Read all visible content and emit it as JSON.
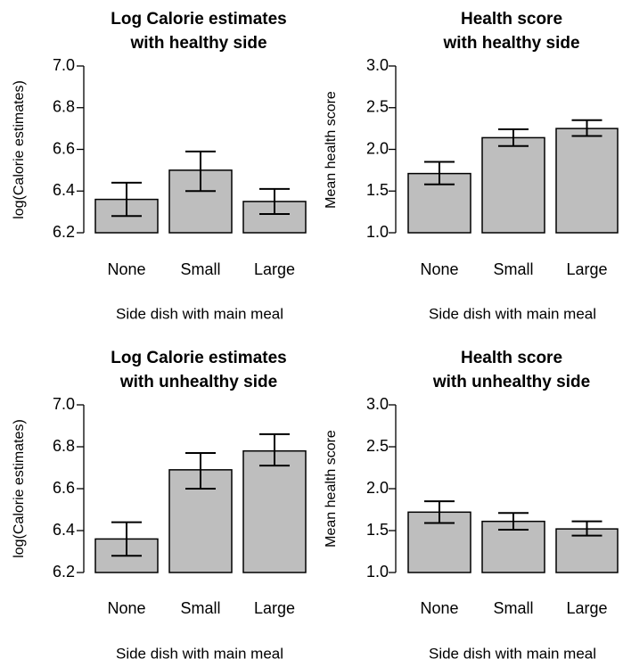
{
  "chart_data": [
    {
      "type": "bar",
      "title": [
        "Log Calorie estimates",
        "with healthy side"
      ],
      "categories": [
        "None",
        "Small",
        "Large"
      ],
      "values": [
        6.36,
        6.5,
        6.35
      ],
      "error_low": [
        6.28,
        6.4,
        6.29
      ],
      "error_high": [
        6.44,
        6.59,
        6.41
      ],
      "ylabel": "log(Calorie estimates)",
      "xlabel": "Side dish with main meal",
      "ylim": [
        6.2,
        7.0
      ],
      "yticks": [
        6.2,
        6.4,
        6.6,
        6.8,
        7.0
      ],
      "ytick_labels": [
        "6.2",
        "6.4",
        "6.6",
        "6.8",
        "7.0"
      ]
    },
    {
      "type": "bar",
      "title": [
        "Health score",
        "with healthy side"
      ],
      "categories": [
        "None",
        "Small",
        "Large"
      ],
      "values": [
        1.71,
        2.14,
        2.25
      ],
      "error_low": [
        1.58,
        2.04,
        2.16
      ],
      "error_high": [
        1.85,
        2.24,
        2.35
      ],
      "ylabel": "Mean health score",
      "xlabel": "Side dish with main meal",
      "ylim": [
        1.0,
        3.0
      ],
      "yticks": [
        1.0,
        1.5,
        2.0,
        2.5,
        3.0
      ],
      "ytick_labels": [
        "1.0",
        "1.5",
        "2.0",
        "2.5",
        "3.0"
      ]
    },
    {
      "type": "bar",
      "title": [
        "Log Calorie estimates",
        "with unhealthy side"
      ],
      "categories": [
        "None",
        "Small",
        "Large"
      ],
      "values": [
        6.36,
        6.69,
        6.78
      ],
      "error_low": [
        6.28,
        6.6,
        6.71
      ],
      "error_high": [
        6.44,
        6.77,
        6.86
      ],
      "ylabel": "log(Calorie estimates)",
      "xlabel": "Side dish with main meal",
      "ylim": [
        6.2,
        7.0
      ],
      "yticks": [
        6.2,
        6.4,
        6.6,
        6.8,
        7.0
      ],
      "ytick_labels": [
        "6.2",
        "6.4",
        "6.6",
        "6.8",
        "7.0"
      ]
    },
    {
      "type": "bar",
      "title": [
        "Health score",
        "with unhealthy side"
      ],
      "categories": [
        "None",
        "Small",
        "Large"
      ],
      "values": [
        1.72,
        1.61,
        1.52
      ],
      "error_low": [
        1.59,
        1.51,
        1.44
      ],
      "error_high": [
        1.85,
        1.71,
        1.61
      ],
      "ylabel": "Mean health score",
      "xlabel": "Side dish with main meal",
      "ylim": [
        1.0,
        3.0
      ],
      "yticks": [
        1.0,
        1.5,
        2.0,
        2.5,
        3.0
      ],
      "ytick_labels": [
        "1.0",
        "1.5",
        "2.0",
        "2.5",
        "3.0"
      ]
    }
  ]
}
